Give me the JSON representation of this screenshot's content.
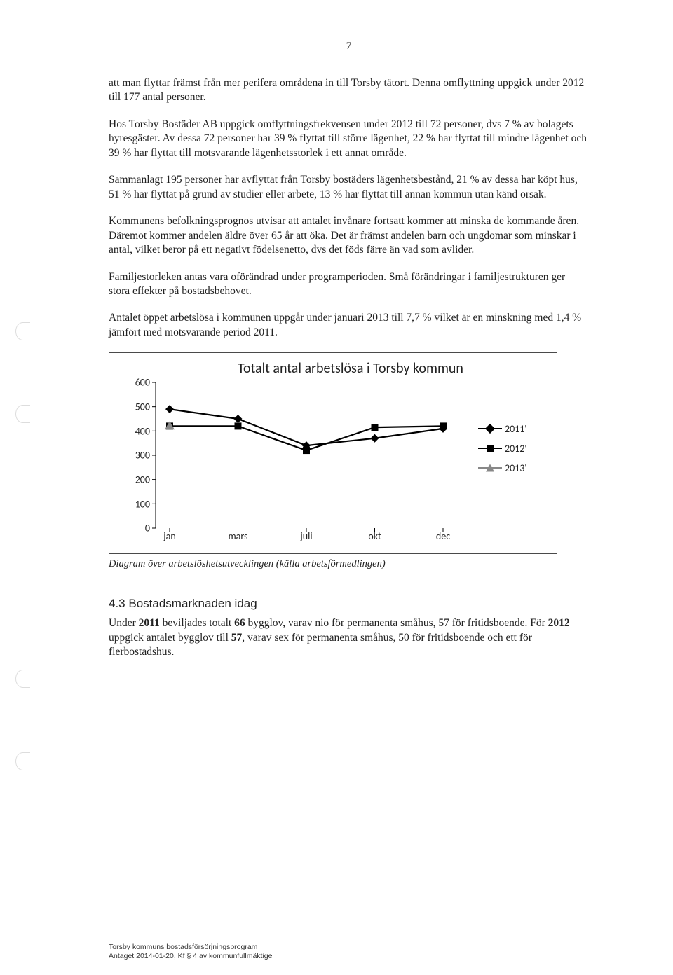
{
  "page_number": "7",
  "paragraphs": {
    "p1": "att man flyttar främst från mer perifera områdena in till Torsby tätort. Denna omflyttning uppgick under 2012 till 177 antal personer.",
    "p2": "Hos Torsby Bostäder AB uppgick omflyttningsfrekvensen under 2012 till 72 personer, dvs 7 % av bolagets hyresgäster. Av dessa 72 personer har 39 % flyttat till större lägenhet, 22 % har flyttat till mindre lägenhet och 39 % har flyttat till motsvarande lägenhetsstorlek i ett annat område.",
    "p3": "Sammanlagt 195 personer har avflyttat från Torsby bostäders lägenhetsbestånd, 21 % av dessa har köpt hus, 51 % har flyttat på grund av studier eller arbete, 13 % har flyttat till annan kommun utan känd orsak.",
    "p4": "Kommunens befolkningsprognos utvisar att antalet invånare fortsatt kommer att minska de kommande åren. Däremot kommer andelen äldre över 65 år att öka. Det är främst andelen barn och ungdomar som minskar i antal, vilket beror på ett negativt födelsenetto, dvs det föds färre än vad som avlider.",
    "p5": "Familjestorleken antas vara oförändrad under programperioden. Små förändringar i familjestrukturen ger stora effekter på bostadsbehovet.",
    "p6": "Antalet öppet arbetslösa i kommunen uppgår under januari 2013 till 7,7 % vilket är en minskning med 1,4 % jämfört med motsvarande period 2011."
  },
  "chart": {
    "type": "line",
    "title": "Totalt antal arbetslösa i Torsby kommun",
    "x_categories": [
      "jan",
      "mars",
      "juli",
      "okt",
      "dec"
    ],
    "y_ticks": [
      0,
      100,
      200,
      300,
      400,
      500,
      600
    ],
    "ylim": [
      0,
      600
    ],
    "series": [
      {
        "name": "2011'",
        "marker": "diamond",
        "color": "#000000",
        "values": [
          490,
          450,
          340,
          370,
          410
        ]
      },
      {
        "name": "2012'",
        "marker": "square",
        "color": "#000000",
        "values": [
          420,
          420,
          320,
          415,
          420
        ]
      },
      {
        "name": "2013'",
        "marker": "triangle",
        "color": "#888888",
        "values": [
          420,
          null,
          null,
          null,
          null
        ]
      }
    ],
    "line_width": 2.2,
    "marker_size": 10,
    "background_color": "#ffffff",
    "border_color": "#4a4a4a",
    "title_fontsize": 20,
    "axis_fontsize": 14,
    "font_family": "Calibri"
  },
  "chart_caption": "Diagram över arbetslöshetsutvecklingen (källa arbetsförmedlingen)",
  "section_heading": "4.3 Bostadsmarknaden idag",
  "section_body": "Under 2011 beviljades totalt 66 bygglov, varav nio för permanenta småhus, 57 för fritidsboende. För 2012 uppgick antalet bygglov till 57, varav sex för permanenta småhus, 50 för fritidsboende och ett för flerbostadshus.",
  "footer": {
    "line1": "Torsby kommuns bostadsförsörjningsprogram",
    "line2": "Antaget 2014-01-20, Kf § 4 av kommunfullmäktige"
  }
}
